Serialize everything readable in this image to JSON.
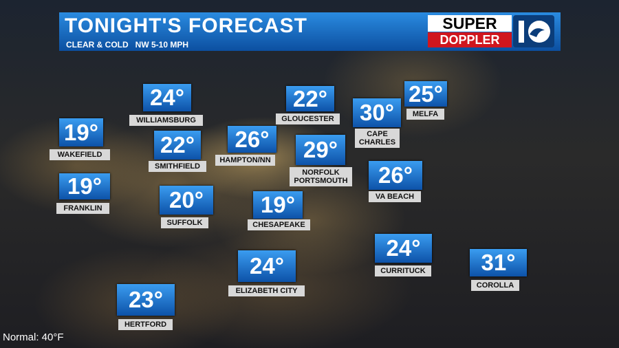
{
  "header": {
    "title": "TONIGHT'S FORECAST",
    "subtitle": "CLEAR & COLD   NW 5-10 MPH"
  },
  "logo": {
    "top": "SUPER",
    "bottom": "DOPPLER"
  },
  "locations": [
    {
      "temp": "24°",
      "name": [
        "WILLIAMSBURG"
      ]
    },
    {
      "temp": "22°",
      "name": [
        "GLOUCESTER"
      ]
    },
    {
      "temp": "30°",
      "name": [
        "CAPE",
        "CHARLES"
      ]
    },
    {
      "temp": "25°",
      "name": [
        "MELFA"
      ]
    },
    {
      "temp": "19°",
      "name": [
        "WAKEFIELD"
      ]
    },
    {
      "temp": "22°",
      "name": [
        "SMITHFIELD"
      ]
    },
    {
      "temp": "26°",
      "name": [
        "HAMPTON/NN"
      ]
    },
    {
      "temp": "29°",
      "name": [
        "NORFOLK",
        "PORTSMOUTH"
      ]
    },
    {
      "temp": "26°",
      "name": [
        "VA BEACH"
      ]
    },
    {
      "temp": "19°",
      "name": [
        "FRANKLIN"
      ]
    },
    {
      "temp": "20°",
      "name": [
        "SUFFOLK"
      ]
    },
    {
      "temp": "19°",
      "name": [
        "CHESAPEAKE"
      ]
    },
    {
      "temp": "24°",
      "name": [
        "CURRITUCK"
      ]
    },
    {
      "temp": "31°",
      "name": [
        "COROLLA"
      ]
    },
    {
      "temp": "24°",
      "name": [
        "ELIZABETH CITY"
      ]
    },
    {
      "temp": "23°",
      "name": [
        "HERTFORD"
      ]
    }
  ],
  "footer": {
    "normal": "Normal: 40°F"
  }
}
